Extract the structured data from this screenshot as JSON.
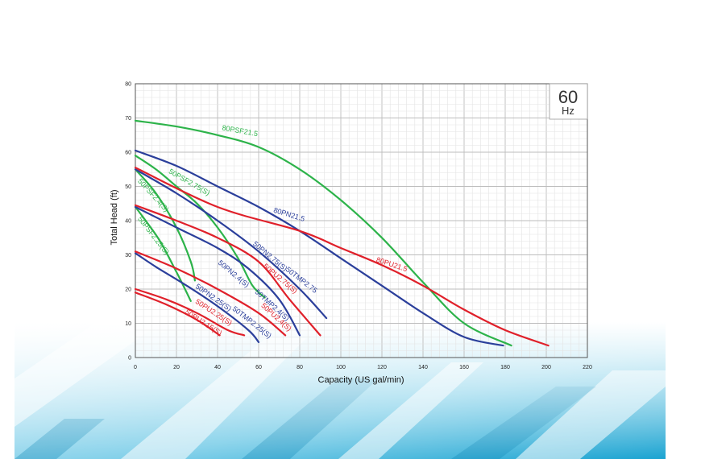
{
  "chart_data": {
    "type": "line",
    "title": "",
    "xlabel": "Capacity (US gal/min)",
    "ylabel": "Total Head (ft)",
    "xlim": [
      0,
      220
    ],
    "ylim": [
      0,
      80
    ],
    "x_ticks": [
      "0",
      "20",
      "40",
      "60",
      "80",
      "100",
      "120",
      "140",
      "160",
      "180",
      "200",
      "220"
    ],
    "y_ticks": [
      "0",
      "10",
      "20",
      "30",
      "40",
      "50",
      "60",
      "70",
      "80"
    ],
    "grid": true,
    "badge": {
      "value": "60",
      "unit": "Hz"
    },
    "colors": {
      "green": "#2db34a",
      "blue": "#2b3f9b",
      "red": "#e0202a",
      "grid": "#c9c9c9"
    },
    "series": [
      {
        "name": "80PSF21.5",
        "color": "#2db34a",
        "points": [
          [
            0,
            69.2
          ],
          [
            20,
            67.5
          ],
          [
            40,
            65
          ],
          [
            60,
            61.5
          ],
          [
            80,
            55
          ],
          [
            100,
            46
          ],
          [
            120,
            35
          ],
          [
            140,
            22
          ],
          [
            160,
            10
          ],
          [
            183,
            3.5
          ]
        ]
      },
      {
        "name": "50PSF2.75(S)",
        "color": "#2db34a",
        "points": [
          [
            0,
            59
          ],
          [
            10,
            55
          ],
          [
            20,
            50
          ],
          [
            30,
            45
          ],
          [
            40,
            38
          ],
          [
            50,
            29
          ],
          [
            57,
            21
          ],
          [
            63,
            17.5
          ]
        ]
      },
      {
        "name": "50PSF2.4(S)",
        "color": "#2db34a",
        "points": [
          [
            0,
            55
          ],
          [
            10,
            48
          ],
          [
            20,
            38
          ],
          [
            27,
            28
          ],
          [
            29,
            22.5
          ]
        ]
      },
      {
        "name": "50PSF2.25(S)",
        "color": "#2db34a",
        "points": [
          [
            0,
            44
          ],
          [
            5,
            40
          ],
          [
            12,
            34
          ],
          [
            20,
            25
          ],
          [
            27,
            16.5
          ]
        ]
      },
      {
        "name": "80PN21.5",
        "color": "#2b3f9b",
        "points": [
          [
            0,
            60.5
          ],
          [
            20,
            56
          ],
          [
            40,
            50
          ],
          [
            60,
            44
          ],
          [
            80,
            37
          ],
          [
            100,
            29
          ],
          [
            120,
            21
          ],
          [
            140,
            13
          ],
          [
            160,
            6
          ],
          [
            179,
            3.5
          ]
        ]
      },
      {
        "name": "50PN2.75(S)",
        "color": "#2b3f9b",
        "points": [
          [
            0,
            55
          ],
          [
            20,
            48
          ],
          [
            40,
            40
          ],
          [
            60,
            31
          ],
          [
            80,
            20
          ],
          [
            93,
            11.5
          ]
        ]
      },
      {
        "name": "50TMP2.75",
        "color": "#2b3f9b",
        "points": [
          [
            0,
            44
          ],
          [
            20,
            38
          ],
          [
            40,
            32
          ],
          [
            55,
            26
          ],
          [
            70,
            17
          ],
          [
            80,
            6.5
          ]
        ]
      },
      {
        "name": "50PN2.25(S)",
        "color": "#2b3f9b",
        "points": [
          [
            0,
            30.5
          ],
          [
            10,
            26.5
          ],
          [
            25,
            21
          ],
          [
            40,
            15
          ],
          [
            55,
            8
          ],
          [
            60,
            4.5
          ]
        ]
      },
      {
        "name": "80PU21.5",
        "color": "#e0202a",
        "points": [
          [
            0,
            55.5
          ],
          [
            40,
            44
          ],
          [
            80,
            37
          ],
          [
            100,
            32
          ],
          [
            120,
            27
          ],
          [
            140,
            21
          ],
          [
            160,
            14
          ],
          [
            180,
            8
          ],
          [
            201,
            3.5
          ]
        ]
      },
      {
        "name": "50PU2.75(S)",
        "color": "#e0202a",
        "points": [
          [
            0,
            44.5
          ],
          [
            20,
            40
          ],
          [
            40,
            35
          ],
          [
            60,
            28
          ],
          [
            75,
            17
          ],
          [
            90,
            6.5
          ]
        ]
      },
      {
        "name": "50TMP2.4(S)",
        "color": "#e0202a",
        "points": [
          [
            0,
            31
          ],
          [
            20,
            26
          ],
          [
            40,
            20
          ],
          [
            60,
            13
          ],
          [
            73,
            6.5
          ]
        ]
      },
      {
        "name": "50PU2.25(S)",
        "color": "#e0202a",
        "points": [
          [
            0,
            20
          ],
          [
            15,
            17
          ],
          [
            30,
            13
          ],
          [
            45,
            8
          ],
          [
            53,
            6.5
          ]
        ]
      },
      {
        "name": "50PU2.15(S)",
        "color": "#e0202a",
        "points": [
          [
            0,
            19
          ],
          [
            15,
            15.5
          ],
          [
            30,
            11
          ],
          [
            41,
            6.5
          ]
        ]
      }
    ],
    "curve_labels": [
      {
        "text": "80PSF21.5",
        "x": 42,
        "y": 66.5,
        "angle": 10,
        "color": "#2db34a"
      },
      {
        "text": "50PSF2.75(S)",
        "x": 16,
        "y": 54,
        "angle": 30,
        "color": "#2db34a"
      },
      {
        "text": "50PSF2.4(S)",
        "x": 1,
        "y": 51.5,
        "angle": 48,
        "color": "#2db34a"
      },
      {
        "text": "50PSF2.25(S)",
        "x": 1,
        "y": 40.5,
        "angle": 52,
        "color": "#2db34a"
      },
      {
        "text": "80PN21.5",
        "x": 67,
        "y": 42.5,
        "angle": 17,
        "color": "#2b3f9b"
      },
      {
        "text": "50PN2.75(S)",
        "x": 57,
        "y": 33,
        "angle": 40,
        "color": "#2b3f9b"
      },
      {
        "text": "50TMP2.75",
        "x": 73,
        "y": 25.5,
        "angle": 38,
        "color": "#2b3f9b"
      },
      {
        "text": "50PN2.4(S)",
        "x": 40,
        "y": 27.5,
        "angle": 40,
        "color": "#2b3f9b"
      },
      {
        "text": "50TMP2.4(S)",
        "x": 58,
        "y": 19,
        "angle": 42,
        "color": "#2b3f9b"
      },
      {
        "text": "50PN2.25(S)",
        "x": 29,
        "y": 20.5,
        "angle": 35,
        "color": "#2b3f9b"
      },
      {
        "text": "50TMP2.25(S)",
        "x": 47,
        "y": 14,
        "angle": 38,
        "color": "#2b3f9b"
      },
      {
        "text": "80PU21.5",
        "x": 117,
        "y": 28,
        "angle": 18,
        "color": "#e0202a"
      },
      {
        "text": "50PU2.75(S)",
        "x": 62,
        "y": 26.5,
        "angle": 40,
        "color": "#e0202a"
      },
      {
        "text": "50PU2.4(S)",
        "x": 61,
        "y": 15,
        "angle": 42,
        "color": "#e0202a"
      },
      {
        "text": "50PU2.25(S)",
        "x": 29,
        "y": 16,
        "angle": 33,
        "color": "#e0202a"
      },
      {
        "text": "50PU2.15(S)",
        "x": 24,
        "y": 13,
        "angle": 33,
        "color": "#e0202a"
      }
    ]
  }
}
